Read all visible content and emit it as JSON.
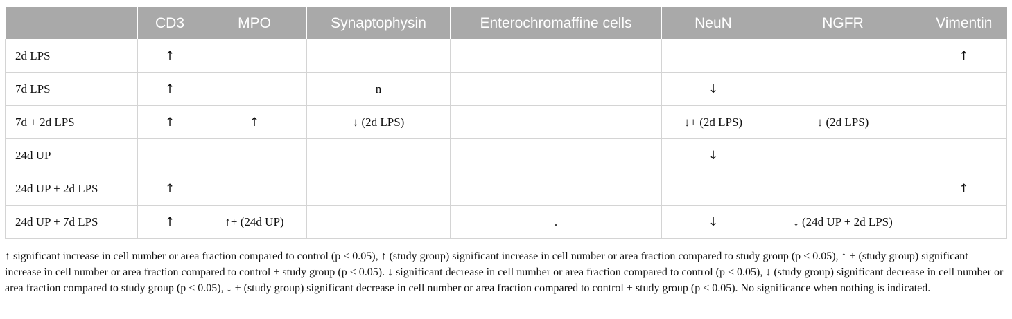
{
  "table": {
    "headers": [
      "",
      "CD3",
      "MPO",
      "Synaptophysin",
      "Enterochromaffine cells",
      "NeuN",
      "NGFR",
      "Vimentin"
    ],
    "rows": [
      [
        "2d LPS",
        "↑",
        "",
        "",
        "",
        "",
        "",
        "↑"
      ],
      [
        "7d LPS",
        "↑",
        "",
        "n",
        "",
        "↓",
        "",
        ""
      ],
      [
        "7d + 2d LPS",
        "↑",
        "↑",
        "↓ (2d LPS)",
        "",
        "↓+ (2d LPS)",
        "↓ (2d LPS)",
        ""
      ],
      [
        "24d UP",
        "",
        "",
        "",
        "",
        "↓",
        "",
        ""
      ],
      [
        "24d UP + 2d LPS",
        "↑",
        "",
        "",
        "",
        "",
        "",
        "↑"
      ],
      [
        "24d UP + 7d LPS",
        "↑",
        "↑+ (24d UP)",
        "",
        ".",
        "↓",
        "↓ (24d UP + 2d LPS)",
        ""
      ]
    ]
  },
  "footnote": "↑ significant increase in cell number or area fraction compared to control (p < 0.05), ↑ (study group) significant increase in cell number or area fraction compared to study group (p < 0.05), ↑ + (study group) significant increase in cell number or area fraction compared to control + study group (p < 0.05). ↓ significant decrease in cell number or area fraction compared to control (p < 0.05), ↓ (study group) significant decrease in cell number or area fraction compared to study group (p < 0.05), ↓ + (study group) significant decrease in cell number or area fraction compared to control + study group (p < 0.05). No significance when nothing is indicated."
}
